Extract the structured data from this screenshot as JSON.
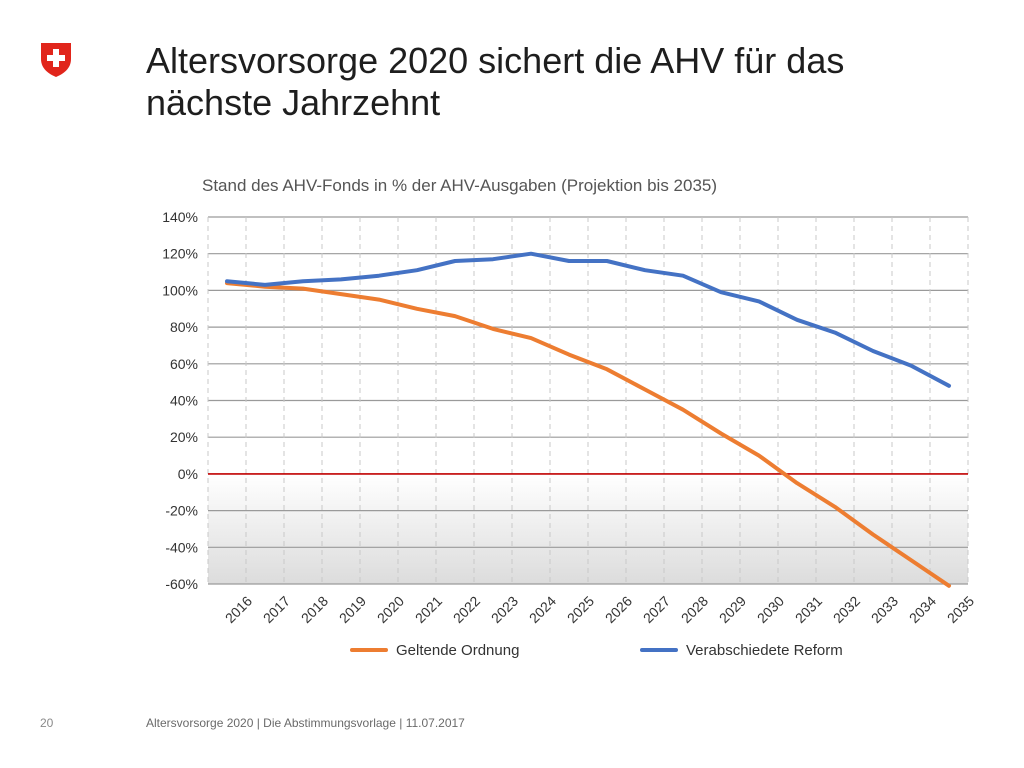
{
  "slide": {
    "title_line1": "Altersvorsorge 2020 sichert die AHV für das",
    "title_line2": "nächste Jahrzehnt",
    "page_number": "20",
    "footer": "Altersvorsorge 2020 | Die Abstimmungsvorlage | 11.07.2017"
  },
  "colors": {
    "series_geltende": "#ED7D31",
    "series_reform": "#4472C4",
    "zero_line": "#C00000",
    "logo_red": "#E1251B"
  },
  "chart_data": {
    "type": "line",
    "title": "Stand des AHV-Fonds in % der AHV-Ausgaben (Projektion bis 2035)",
    "xlabel": "",
    "ylabel": "",
    "categories": [
      "2016",
      "2017",
      "2018",
      "2019",
      "2020",
      "2021",
      "2022",
      "2023",
      "2024",
      "2025",
      "2026",
      "2027",
      "2028",
      "2029",
      "2030",
      "2031",
      "2032",
      "2033",
      "2034",
      "2035"
    ],
    "y_ticks": [
      "140%",
      "120%",
      "100%",
      "80%",
      "60%",
      "40%",
      "20%",
      "0%",
      "-20%",
      "-40%",
      "-60%"
    ],
    "ylim": [
      -60,
      140
    ],
    "y_tick_step": 20,
    "grid": true,
    "legend_position": "bottom",
    "series": [
      {
        "name": "Geltende Ordnung",
        "values": [
          104,
          102,
          101,
          98,
          95,
          90,
          86,
          79,
          74,
          65,
          57,
          46,
          35,
          22,
          10,
          -5,
          -18,
          -33,
          -47,
          -61
        ]
      },
      {
        "name": "Verabschiedete Reform",
        "values": [
          105,
          103,
          105,
          106,
          108,
          111,
          116,
          117,
          120,
          116,
          116,
          111,
          108,
          99,
          94,
          84,
          77,
          67,
          59,
          48
        ]
      }
    ]
  }
}
